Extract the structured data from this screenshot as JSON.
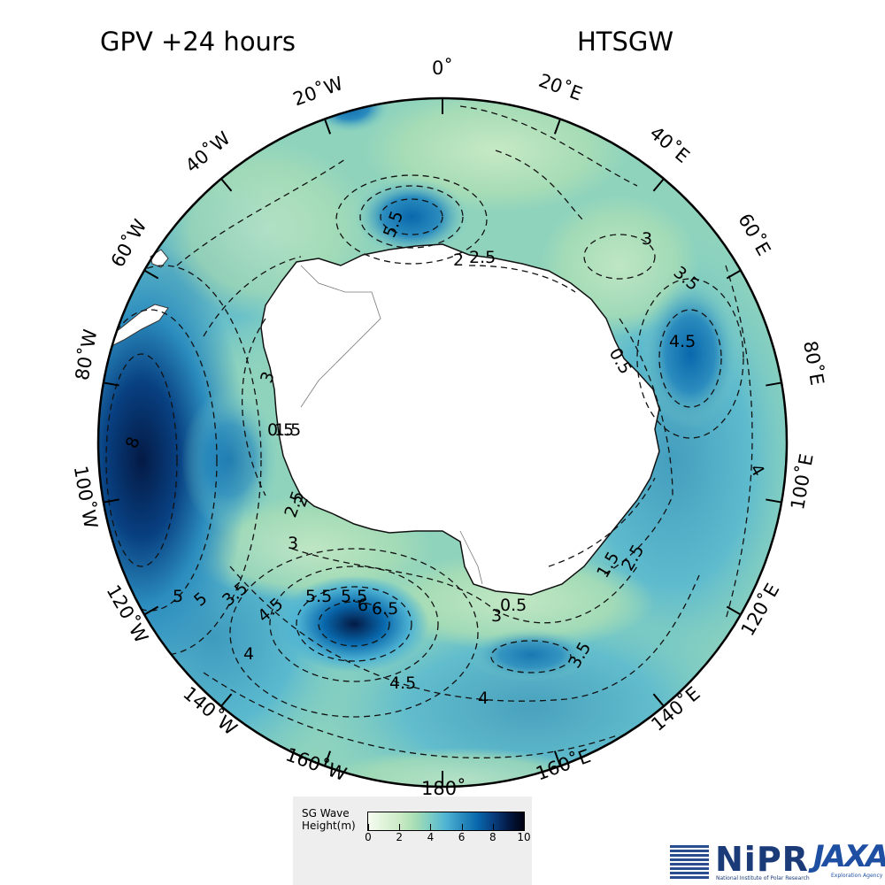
{
  "header": {
    "title_left": "GPV +24 hours",
    "title_right": "HTSGW"
  },
  "map": {
    "projection": "south-polar-stereographic",
    "longitude_labels": [
      "0˚",
      "20˚E",
      "40˚E",
      "60˚E",
      "80˚E",
      "100˚E",
      "120˚E",
      "140˚E",
      "160˚E",
      "180˚",
      "160˚W",
      "140˚W",
      "120˚W",
      "100˚W",
      "80˚W",
      "60˚W",
      "40˚W",
      "20˚W"
    ],
    "contour_labels": [
      "5.5",
      "2",
      "2.5",
      "3",
      "3.5",
      "4.5",
      "0.5",
      "4",
      "1.5",
      "2.5",
      "3",
      "3.5",
      "4",
      "0.5",
      "4.5",
      "5",
      "5.5",
      "5.5",
      "6",
      "6.5",
      "3",
      "4",
      "4.5",
      "5",
      "3.5",
      "2.5",
      "2",
      "3",
      "0.5",
      "1.5",
      "8"
    ],
    "colors": {
      "land": "#ffffff",
      "low": "#d4f0c8",
      "mid": "#7bccc4",
      "high": "#0868ac",
      "max": "#041a45"
    }
  },
  "legend": {
    "title_line1": "SG Wave",
    "title_line2": "Height(m)",
    "ticks": [
      "0",
      "2",
      "4",
      "6",
      "8",
      "10"
    ],
    "range": [
      0,
      10
    ]
  },
  "logos": {
    "nipr_text": "NiPR",
    "nipr_sub": "National Institute of Polar Research",
    "jaxa_text": "JAXA",
    "jaxa_sub": "Exploration Agency"
  }
}
